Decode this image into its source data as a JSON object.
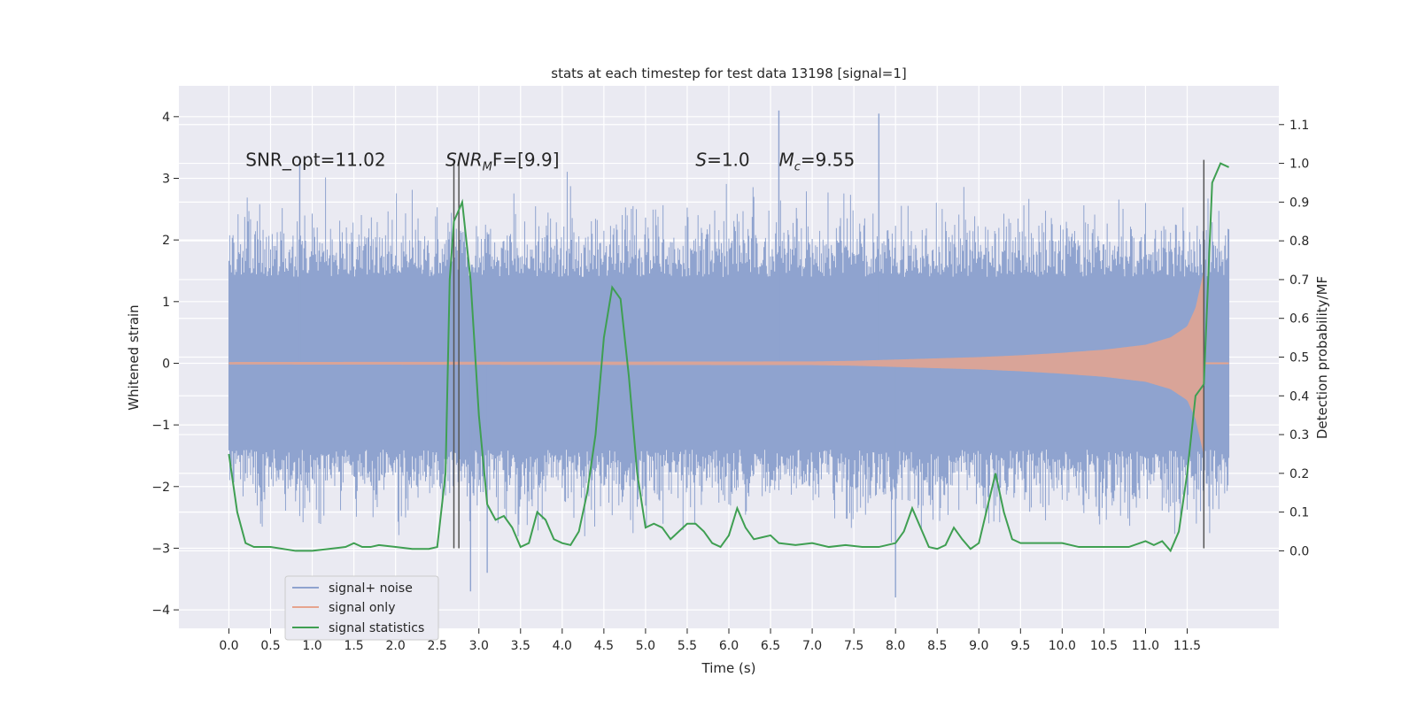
{
  "chart_data": {
    "type": "line",
    "title": "stats at each timestep for test data 13198 [signal=1]",
    "xlabel": "Time (s)",
    "ylabel": "Whitened strain",
    "ylabel_right": "Detection probability/MF",
    "xlim": [
      -0.6,
      12.6
    ],
    "ylim": [
      -4.3,
      4.5
    ],
    "ylim_right": [
      -0.2,
      1.2
    ],
    "x_ticks": [
      0.0,
      0.5,
      1.0,
      1.5,
      2.0,
      2.5,
      3.0,
      3.5,
      4.0,
      4.5,
      5.0,
      5.5,
      6.0,
      6.5,
      7.0,
      7.5,
      8.0,
      8.5,
      9.0,
      9.5,
      10.0,
      10.5,
      11.0,
      11.5
    ],
    "x_tick_labels": [
      "0.0",
      "0.5",
      "1.0",
      "1.5",
      "2.0",
      "2.5",
      "3.0",
      "3.5",
      "4.0",
      "4.5",
      "5.0",
      "5.5",
      "6.0",
      "6.5",
      "7.0",
      "7.5",
      "8.0",
      "8.5",
      "9.0",
      "9.5",
      "10.0",
      "10.5",
      "11.0",
      "11.5"
    ],
    "y_ticks": [
      -4,
      -3,
      -2,
      -1,
      0,
      1,
      2,
      3,
      4
    ],
    "y_tick_labels": [
      "−4",
      "−3",
      "−2",
      "−1",
      "0",
      "1",
      "2",
      "3",
      "4"
    ],
    "y_ticks_right": [
      0.0,
      0.1,
      0.2,
      0.3,
      0.4,
      0.5,
      0.6,
      0.7,
      0.8,
      0.9,
      1.0,
      1.1
    ],
    "y_tick_labels_right": [
      "0.0",
      "0.1",
      "0.2",
      "0.3",
      "0.4",
      "0.5",
      "0.6",
      "0.7",
      "0.8",
      "0.9",
      "1.0",
      "1.1"
    ],
    "grid": true,
    "legend_position": "lower-left",
    "legend": [
      {
        "label": "signal+ noise",
        "color": "#8fa3cf"
      },
      {
        "label": "signal only",
        "color": "#e6a48e"
      },
      {
        "label": "signal statistics",
        "color": "#3f9f52"
      }
    ],
    "annotations": [
      {
        "text": "SNR_opt=11.02",
        "x": 0.2,
        "y": 3.3
      },
      {
        "text_italic": "SNR",
        "sub": "M",
        "text_rest": "F=[9.9]",
        "x": 2.6,
        "y": 3.3
      },
      {
        "text_italic": "S",
        "text_rest": "=1.0",
        "x": 5.6,
        "y": 3.3
      },
      {
        "text_italic": "M",
        "sub": "c",
        "text_rest": "=9.55",
        "x": 6.6,
        "y": 3.3
      }
    ],
    "vertical_markers": [
      2.7,
      2.76,
      11.7
    ],
    "series": [
      {
        "name": "signal+ noise",
        "kind": "noise-band",
        "x_range": [
          0.0,
          12.0
        ],
        "amplitude_envelope": 1.4,
        "spike_peaks": [
          4.1,
          -3.8,
          4.05,
          -3.7,
          3.3,
          -3.4
        ]
      },
      {
        "name": "signal only",
        "kind": "chirp",
        "x_range": [
          0.0,
          11.7
        ],
        "envelope": {
          "x": [
            0.0,
            7.0,
            7.5,
            8.0,
            8.5,
            9.0,
            9.5,
            10.0,
            10.5,
            11.0,
            11.3,
            11.5,
            11.6,
            11.7
          ],
          "amp": [
            0.02,
            0.03,
            0.04,
            0.06,
            0.08,
            0.1,
            0.13,
            0.17,
            0.22,
            0.3,
            0.42,
            0.6,
            0.9,
            1.5
          ]
        }
      },
      {
        "name": "signal statistics",
        "axis": "right",
        "x": [
          0.0,
          0.1,
          0.2,
          0.3,
          0.5,
          0.8,
          1.0,
          1.2,
          1.4,
          1.5,
          1.6,
          1.7,
          1.8,
          2.0,
          2.2,
          2.4,
          2.5,
          2.6,
          2.65,
          2.7,
          2.8,
          2.9,
          3.0,
          3.1,
          3.2,
          3.3,
          3.4,
          3.5,
          3.6,
          3.7,
          3.8,
          3.9,
          4.0,
          4.1,
          4.2,
          4.3,
          4.4,
          4.5,
          4.6,
          4.7,
          4.8,
          4.9,
          5.0,
          5.1,
          5.2,
          5.3,
          5.4,
          5.5,
          5.6,
          5.7,
          5.8,
          5.9,
          6.0,
          6.1,
          6.2,
          6.3,
          6.4,
          6.5,
          6.6,
          6.8,
          7.0,
          7.2,
          7.4,
          7.6,
          7.8,
          8.0,
          8.1,
          8.2,
          8.3,
          8.4,
          8.5,
          8.6,
          8.7,
          8.8,
          8.9,
          9.0,
          9.1,
          9.2,
          9.3,
          9.4,
          9.5,
          9.8,
          10.0,
          10.2,
          10.5,
          10.8,
          11.0,
          11.1,
          11.2,
          11.3,
          11.4,
          11.5,
          11.6,
          11.7,
          11.8,
          11.9,
          12.0
        ],
        "values": [
          0.25,
          0.1,
          0.02,
          0.01,
          0.01,
          0.0,
          0.0,
          0.005,
          0.01,
          0.02,
          0.01,
          0.01,
          0.015,
          0.01,
          0.005,
          0.005,
          0.01,
          0.2,
          0.7,
          0.85,
          0.9,
          0.7,
          0.35,
          0.12,
          0.08,
          0.09,
          0.06,
          0.01,
          0.02,
          0.1,
          0.08,
          0.03,
          0.02,
          0.015,
          0.05,
          0.15,
          0.3,
          0.55,
          0.68,
          0.65,
          0.45,
          0.2,
          0.06,
          0.07,
          0.06,
          0.03,
          0.05,
          0.07,
          0.07,
          0.05,
          0.02,
          0.01,
          0.04,
          0.11,
          0.06,
          0.03,
          0.035,
          0.04,
          0.02,
          0.015,
          0.02,
          0.01,
          0.015,
          0.01,
          0.01,
          0.02,
          0.05,
          0.11,
          0.06,
          0.01,
          0.005,
          0.015,
          0.06,
          0.03,
          0.005,
          0.02,
          0.11,
          0.2,
          0.1,
          0.03,
          0.02,
          0.02,
          0.02,
          0.01,
          0.01,
          0.01,
          0.025,
          0.015,
          0.025,
          0.0,
          0.05,
          0.2,
          0.4,
          0.43,
          0.95,
          1.0,
          0.99
        ]
      }
    ]
  }
}
